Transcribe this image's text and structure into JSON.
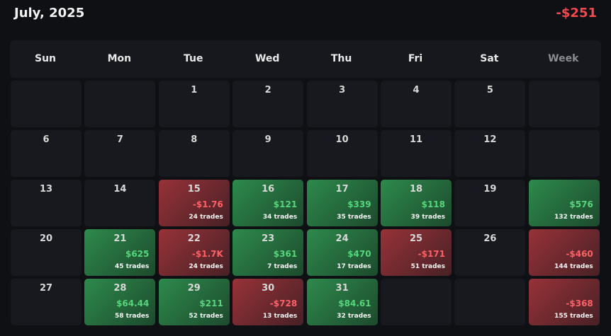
{
  "header": {
    "title": "July, 2025",
    "total": "-$251"
  },
  "columns": [
    "Sun",
    "Mon",
    "Tue",
    "Wed",
    "Thu",
    "Fri",
    "Sat",
    "Week"
  ],
  "weeks": [
    [
      null,
      null,
      {
        "day": "1"
      },
      {
        "day": "2"
      },
      {
        "day": "3"
      },
      {
        "day": "4"
      },
      {
        "day": "5"
      },
      null
    ],
    [
      {
        "day": "6"
      },
      {
        "day": "7"
      },
      {
        "day": "8"
      },
      {
        "day": "9"
      },
      {
        "day": "10"
      },
      {
        "day": "11"
      },
      {
        "day": "12"
      },
      null
    ],
    [
      {
        "day": "13"
      },
      {
        "day": "14"
      },
      {
        "day": "15",
        "pnl": "-$1.76",
        "trades": "24 trades"
      },
      {
        "day": "16",
        "pnl": "$121",
        "trades": "34 trades"
      },
      {
        "day": "17",
        "pnl": "$339",
        "trades": "35 trades"
      },
      {
        "day": "18",
        "pnl": "$118",
        "trades": "39 trades"
      },
      {
        "day": "19"
      },
      {
        "pnl": "$576",
        "trades": "132 trades"
      }
    ],
    [
      {
        "day": "20"
      },
      {
        "day": "21",
        "pnl": "$625",
        "trades": "45 trades"
      },
      {
        "day": "22",
        "pnl": "-$1.7K",
        "trades": "24 trades"
      },
      {
        "day": "23",
        "pnl": "$361",
        "trades": "7 trades"
      },
      {
        "day": "24",
        "pnl": "$470",
        "trades": "17 trades"
      },
      {
        "day": "25",
        "pnl": "-$171",
        "trades": "51 trades"
      },
      {
        "day": "26"
      },
      {
        "pnl": "-$460",
        "trades": "144 trades"
      }
    ],
    [
      {
        "day": "27"
      },
      {
        "day": "28",
        "pnl": "$64.44",
        "trades": "58 trades"
      },
      {
        "day": "29",
        "pnl": "$211",
        "trades": "52 trades"
      },
      {
        "day": "30",
        "pnl": "-$728",
        "trades": "13 trades"
      },
      {
        "day": "31",
        "pnl": "$84.61",
        "trades": "32 trades"
      },
      null,
      null,
      {
        "pnl": "-$368",
        "trades": "155 trades"
      }
    ]
  ]
}
